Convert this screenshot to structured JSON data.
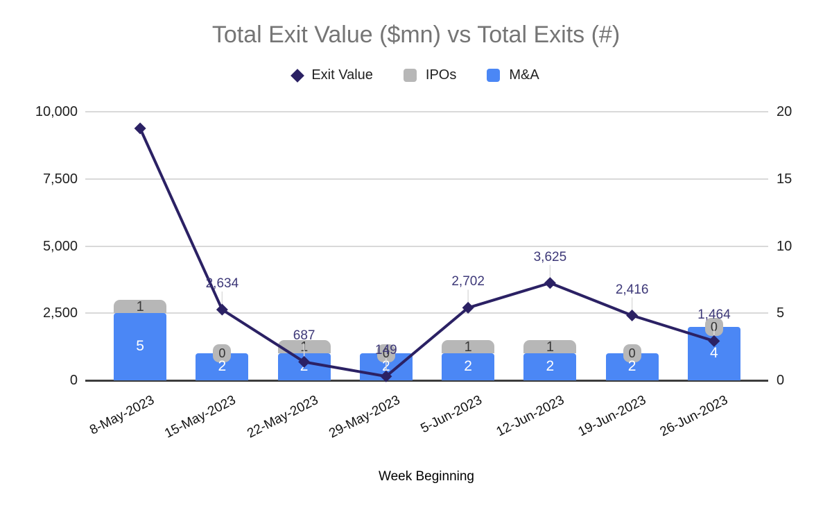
{
  "chart_data": {
    "type": "combo",
    "title": "Total Exit Value ($mn) vs Total Exits (#)",
    "xlabel": "Week Beginning",
    "legend_position": "top",
    "grid": true,
    "categories": [
      "8-May-2023",
      "15-May-2023",
      "22-May-2023",
      "29-May-2023",
      "5-Jun-2023",
      "12-Jun-2023",
      "19-Jun-2023",
      "26-Jun-2023"
    ],
    "left_axis": {
      "tick_labels": [
        "10,000",
        "7,500",
        "5,000",
        "2,500",
        "0"
      ],
      "tick_values": [
        10000,
        7500,
        5000,
        2500,
        0
      ],
      "min": 0,
      "max": 10000
    },
    "right_axis": {
      "tick_labels": [
        "20",
        "15",
        "10",
        "5",
        "0"
      ],
      "tick_values": [
        20,
        15,
        10,
        5,
        0
      ],
      "min": 0,
      "max": 20
    },
    "series": [
      {
        "name": "Exit Value",
        "type": "line",
        "axis": "left",
        "marker": "diamond",
        "color": "#2b2164",
        "label_color": "#3d3878",
        "values": [
          9380,
          2634,
          687,
          149,
          2702,
          3625,
          2416,
          1464
        ],
        "labels": [
          "",
          "2,634",
          "687",
          "149",
          "2,702",
          "3,625",
          "2,416",
          "1,464"
        ]
      },
      {
        "name": "IPOs",
        "type": "bar",
        "stack": "top",
        "axis": "right",
        "color": "#b7b7b7",
        "label_color": "#3a3a3a",
        "values": [
          1,
          0,
          1,
          0,
          1,
          1,
          0,
          0
        ],
        "labels": [
          "1",
          "0",
          "1",
          "0",
          "1",
          "1",
          "0",
          "0"
        ]
      },
      {
        "name": "M&A",
        "type": "bar",
        "stack": "bottom",
        "axis": "right",
        "color": "#4b87f5",
        "label_color": "#ffffff",
        "values": [
          5,
          2,
          2,
          2,
          2,
          2,
          2,
          4
        ],
        "labels": [
          "5",
          "2",
          "2",
          "2",
          "2",
          "2",
          "2",
          "4"
        ]
      }
    ],
    "colors": {
      "title": "#757575",
      "axis_text": "#202020",
      "grid": "#d9d9d9",
      "baseline": "#3d3d3d",
      "leader": "#dcdcdc"
    }
  }
}
